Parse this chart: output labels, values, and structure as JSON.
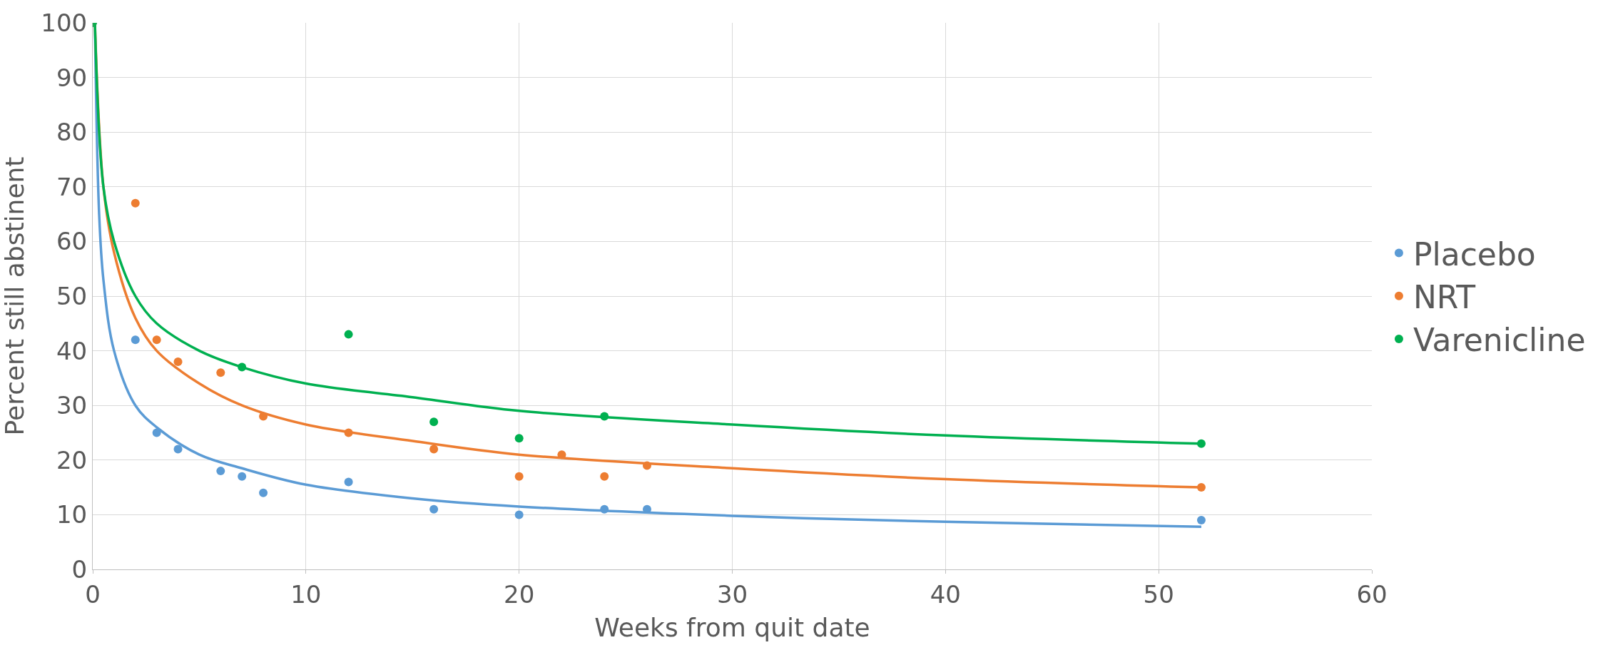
{
  "chart_data": {
    "type": "scatter",
    "xlabel": "Weeks from quit date",
    "ylabel": "Percent still abstinent",
    "xlim": [
      0,
      60
    ],
    "xticks": [
      0,
      10,
      20,
      30,
      40,
      50,
      60
    ],
    "ylim": [
      0,
      100
    ],
    "yticks": [
      0,
      10,
      20,
      30,
      40,
      50,
      60,
      70,
      80,
      90,
      100
    ],
    "grid": true,
    "legend": "right",
    "marker": "circle",
    "series": [
      {
        "name": "Placebo",
        "color": "#5b9bd5",
        "x": [
          2,
          3,
          4,
          6,
          7,
          8,
          12,
          16,
          20,
          24,
          26,
          52
        ],
        "values": [
          42,
          25,
          22,
          18,
          17,
          14,
          16,
          11,
          10,
          11,
          11,
          9
        ]
      },
      {
        "name": "NRT",
        "color": "#ed7d31",
        "x": [
          2,
          3,
          4,
          6,
          8,
          12,
          16,
          20,
          22,
          24,
          26,
          52
        ],
        "values": [
          67,
          42,
          38,
          36,
          28,
          25,
          22,
          17,
          21,
          17,
          19,
          15
        ]
      },
      {
        "name": "Varenicline",
        "color": "#00b050",
        "x": [
          0,
          7,
          12,
          16,
          20,
          24,
          52
        ],
        "values": [
          100,
          37,
          43,
          27,
          24,
          28,
          23
        ]
      },
      {
        "type": "line",
        "marker": "none",
        "color": "#5b9bd5",
        "x": [
          0.1,
          0.3,
          0.5,
          1,
          2,
          3,
          5,
          7,
          10,
          15,
          20,
          30,
          40,
          52
        ],
        "values": [
          100,
          65,
          53,
          40,
          30,
          26,
          21,
          18.5,
          15.5,
          13,
          11.5,
          9.8,
          8.7,
          7.8
        ]
      },
      {
        "type": "line",
        "marker": "none",
        "color": "#ed7d31",
        "x": [
          0.1,
          0.5,
          1,
          2,
          3,
          5,
          7,
          10,
          15,
          20,
          30,
          40,
          52
        ],
        "values": [
          100,
          70,
          58,
          46,
          40,
          34,
          30,
          26.5,
          23.5,
          21,
          18.5,
          16.5,
          15
        ]
      },
      {
        "type": "line",
        "marker": "none",
        "color": "#00b050",
        "x": [
          0.1,
          0.5,
          1,
          2,
          3,
          5,
          7,
          10,
          15,
          20,
          30,
          40,
          52
        ],
        "values": [
          100,
          70,
          60,
          50,
          45,
          40,
          37,
          34,
          31.5,
          29,
          26.5,
          24.5,
          23
        ]
      }
    ]
  }
}
